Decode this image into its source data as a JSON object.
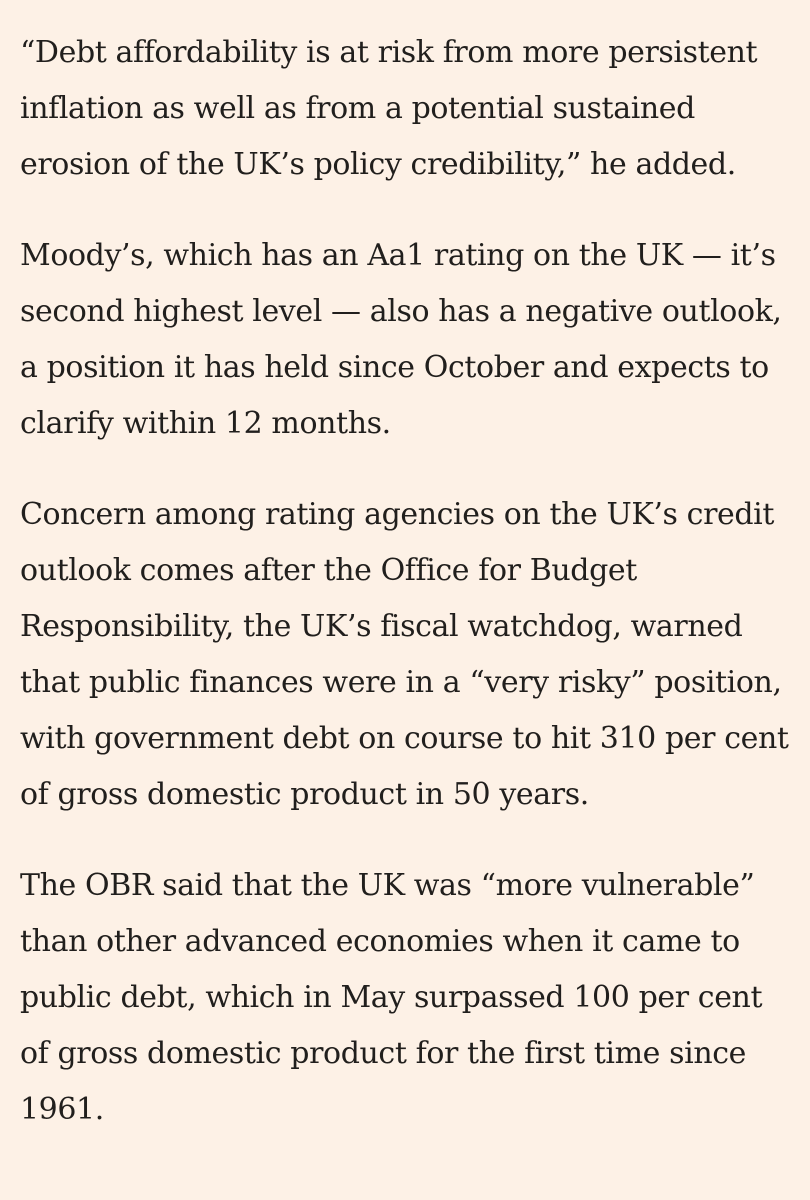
{
  "article": {
    "paragraphs": [
      {
        "lines": [
          "“Debt affordability is at risk from more persistent",
          "inflation as well as from a potential sustained",
          "erosion of the UK’s policy credibility,” he added."
        ]
      },
      {
        "lines": [
          "Moody’s, which has an Aa1 rating on the UK — it’s",
          "second highest level — also has a negative outlook,",
          "a position it has held since October and expects to",
          "clarify within 12 months."
        ]
      },
      {
        "lines": [
          "Concern among rating agencies on the UK’s credit",
          "outlook comes after the Office for Budget",
          "Responsibility, the UK’s fiscal watchdog, warned",
          "that public finances were in a “very risky” position,",
          "with government debt on course to hit 310 per cent",
          "of gross domestic product in 50 years."
        ]
      },
      {
        "lines": [
          "The OBR said that the UK was “more vulnerable”",
          "than other advanced economies when it came to",
          "public debt, which in May surpassed 100 per cent",
          "of gross domestic product for the first time since",
          "1961."
        ]
      }
    ]
  }
}
